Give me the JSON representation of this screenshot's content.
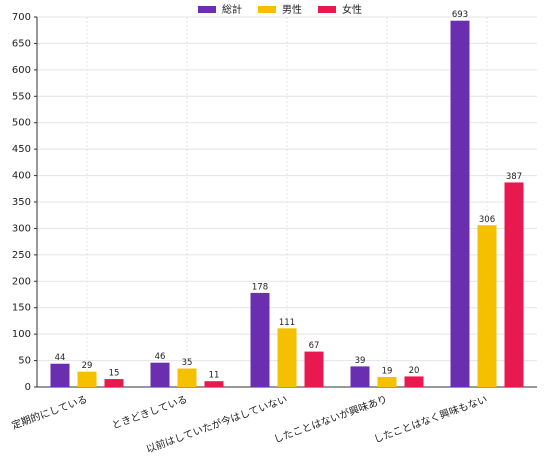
{
  "chart_data": {
    "type": "bar",
    "categories": [
      "定期的にしている",
      "ときどきしている",
      "以前はしていたが今はしていない",
      "したことはないが興味あり",
      "したことはなく興味もない"
    ],
    "series": [
      {
        "name": "総計",
        "color": "#6a2fb0",
        "values": [
          44,
          46,
          178,
          39,
          693
        ]
      },
      {
        "name": "男性",
        "color": "#f5c000",
        "values": [
          29,
          35,
          111,
          19,
          306
        ]
      },
      {
        "name": "女性",
        "color": "#e8194f",
        "values": [
          15,
          11,
          67,
          20,
          387
        ]
      }
    ],
    "ylim": [
      0,
      700
    ],
    "yticks": [
      0,
      50,
      100,
      150,
      200,
      250,
      300,
      350,
      400,
      450,
      500,
      550,
      600,
      650,
      700
    ],
    "grid": true,
    "legend": "top"
  }
}
